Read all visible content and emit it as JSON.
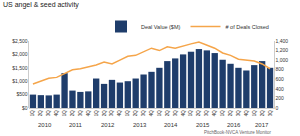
{
  "chart_data": {
    "type": "bar",
    "title": "US angel & seed activity",
    "source": "PitchBook-NVCA Venture Monitor",
    "categories": [
      [
        "2010",
        "1Q"
      ],
      [
        "2010",
        "2Q"
      ],
      [
        "2010",
        "3Q"
      ],
      [
        "2010",
        "4Q"
      ],
      [
        "2011",
        "1Q"
      ],
      [
        "2011",
        "2Q"
      ],
      [
        "2011",
        "3Q"
      ],
      [
        "2011",
        "4Q"
      ],
      [
        "2012",
        "1Q"
      ],
      [
        "2012",
        "2Q"
      ],
      [
        "2012",
        "3Q"
      ],
      [
        "2012",
        "4Q"
      ],
      [
        "2013",
        "1Q"
      ],
      [
        "2013",
        "2Q"
      ],
      [
        "2013",
        "3Q"
      ],
      [
        "2013",
        "4Q"
      ],
      [
        "2014",
        "1Q"
      ],
      [
        "2014",
        "2Q"
      ],
      [
        "2014",
        "3Q"
      ],
      [
        "2014",
        "4Q"
      ],
      [
        "2015",
        "1Q"
      ],
      [
        "2015",
        "2Q"
      ],
      [
        "2015",
        "3Q"
      ],
      [
        "2015",
        "4Q"
      ],
      [
        "2016",
        "1Q"
      ],
      [
        "2016",
        "2Q"
      ],
      [
        "2016",
        "3Q"
      ],
      [
        "2016",
        "4Q"
      ],
      [
        "2017",
        "1Q"
      ],
      [
        "2017",
        "2Q"
      ],
      [
        "2017",
        "3Q"
      ]
    ],
    "series": [
      {
        "name": "Deal Value ($M)",
        "type": "bar",
        "color": "#1f3d6b",
        "values": [
          500,
          480,
          470,
          500,
          1300,
          650,
          600,
          620,
          1100,
          900,
          1050,
          950,
          1000,
          1100,
          1250,
          1350,
          1500,
          1750,
          1850,
          2000,
          2100,
          2200,
          2150,
          2050,
          1800,
          1650,
          1500,
          1400,
          1600,
          1750,
          1500
        ]
      },
      {
        "name": "# of Deals Closed",
        "type": "line",
        "axis": "y2",
        "color": "#f5a54a",
        "values": [
          500,
          560,
          620,
          640,
          720,
          800,
          820,
          860,
          900,
          960,
          920,
          1000,
          1080,
          1100,
          1180,
          1250,
          1200,
          1280,
          1250,
          1300,
          1340,
          1380,
          1320,
          1250,
          1150,
          1100,
          1020,
          1000,
          980,
          920,
          820
        ]
      }
    ],
    "ylim": [
      0,
      2500
    ],
    "yticks": [
      {
        "value": 0,
        "label": "$0"
      },
      {
        "value": 500,
        "label": "$500"
      },
      {
        "value": 1000,
        "label": "$1,000"
      },
      {
        "value": 1500,
        "label": "$1,500"
      },
      {
        "value": 2000,
        "label": "$2,000"
      },
      {
        "value": 2500,
        "label": "$2,500"
      }
    ],
    "y2lim": [
      0,
      1400
    ],
    "y2ticks": [
      0,
      200,
      400,
      600,
      800,
      {
        "value": 1000,
        "label": "1,000"
      },
      {
        "value": 1200,
        "label": "1,200"
      },
      {
        "value": 1400,
        "label": "1,400"
      }
    ],
    "grid": false,
    "legend": "top-right"
  }
}
